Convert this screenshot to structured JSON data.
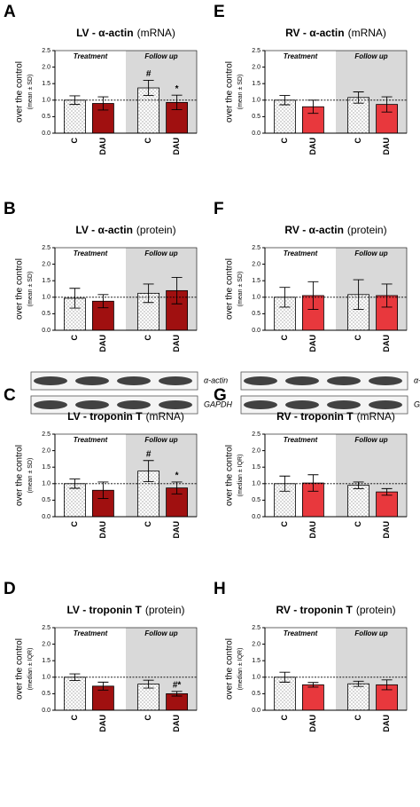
{
  "chart_data": [
    {
      "type": "bar",
      "panel": "A",
      "title": "LV - α-actin",
      "title_note": "(mRNA)",
      "ylabel": "over the control",
      "ylabel_note": "(mean ± SD)",
      "sections": [
        "Treatment",
        "Follow up"
      ],
      "categories": [
        "C",
        "DAU",
        "C",
        "DAU"
      ],
      "values": [
        1.0,
        0.9,
        1.37,
        0.93
      ],
      "errors": [
        0.13,
        0.2,
        0.23,
        0.22
      ],
      "annotations": [
        null,
        null,
        "#",
        "*"
      ],
      "colors": [
        "#ffffff",
        "#a01010",
        "#ffffff",
        "#a01010"
      ],
      "reference_line": 1,
      "ylim": [
        0,
        2.5
      ],
      "yticks": [
        {
          "value": 0,
          "label": "0.0"
        },
        {
          "value": 0.5,
          "label": "0.5"
        },
        {
          "value": 1,
          "label": "1.0"
        },
        {
          "value": 1.5,
          "label": "1.5"
        },
        {
          "value": 2,
          "label": "2.0"
        },
        {
          "value": 2.5,
          "label": "2.5"
        }
      ]
    },
    {
      "type": "bar",
      "panel": "B",
      "title": "LV - α-actin",
      "title_note": "(protein)",
      "ylabel": "over the control",
      "ylabel_note": "(mean ± SD)",
      "sections": [
        "Treatment",
        "Follow up"
      ],
      "categories": [
        "C",
        "DAU",
        "C",
        "DAU"
      ],
      "values": [
        0.97,
        0.88,
        1.12,
        1.2
      ],
      "errors": [
        0.3,
        0.2,
        0.28,
        0.4
      ],
      "annotations": [
        null,
        null,
        null,
        null
      ],
      "colors": [
        "#ffffff",
        "#a01010",
        "#ffffff",
        "#a01010"
      ],
      "reference_line": 1,
      "ylim": [
        0,
        2.5
      ],
      "yticks": [
        {
          "value": 0,
          "label": "0.0"
        },
        {
          "value": 0.5,
          "label": "0.5"
        },
        {
          "value": 1,
          "label": "1.0"
        },
        {
          "value": 1.5,
          "label": "1.5"
        },
        {
          "value": 2,
          "label": "2.0"
        },
        {
          "value": 2.5,
          "label": "2.5"
        }
      ],
      "blot": [
        "α-actin",
        "GAPDH"
      ]
    },
    {
      "type": "bar",
      "panel": "C",
      "title": "LV - troponin T",
      "title_note": "(mRNA)",
      "ylabel": "over the control",
      "ylabel_note": "(mean ± SD)",
      "sections": [
        "Treatment",
        "Follow up"
      ],
      "categories": [
        "C",
        "DAU",
        "C",
        "DAU"
      ],
      "values": [
        1.0,
        0.8,
        1.38,
        0.87
      ],
      "errors": [
        0.14,
        0.25,
        0.32,
        0.18
      ],
      "annotations": [
        null,
        null,
        "#",
        "*"
      ],
      "colors": [
        "#ffffff",
        "#a01010",
        "#ffffff",
        "#a01010"
      ],
      "reference_line": 1,
      "ylim": [
        0,
        2.5
      ],
      "yticks": [
        {
          "value": 0,
          "label": "0.0"
        },
        {
          "value": 0.5,
          "label": "0.5"
        },
        {
          "value": 1,
          "label": "1.0"
        },
        {
          "value": 1.5,
          "label": "1.5"
        },
        {
          "value": 2,
          "label": "2.0"
        },
        {
          "value": 2.5,
          "label": "2.5"
        }
      ]
    },
    {
      "type": "bar",
      "panel": "D",
      "title": "LV - troponin T",
      "title_note": "(protein)",
      "ylabel": "over the control",
      "ylabel_note": "(median ± IQR)",
      "sections": [
        "Treatment",
        "Follow up"
      ],
      "categories": [
        "C",
        "DAU",
        "C",
        "DAU"
      ],
      "values": [
        1.0,
        0.73,
        0.79,
        0.5
      ],
      "errors": [
        0.1,
        0.12,
        0.12,
        0.07
      ],
      "annotations": [
        null,
        null,
        null,
        "#*"
      ],
      "colors": [
        "#ffffff",
        "#a01010",
        "#ffffff",
        "#a01010"
      ],
      "reference_line": 1,
      "ylim": [
        0,
        2.5
      ],
      "yticks": [
        {
          "value": 0,
          "label": "0.0"
        },
        {
          "value": 0.5,
          "label": "0.5"
        },
        {
          "value": 1,
          "label": "1.0"
        },
        {
          "value": 1.5,
          "label": "1.5"
        },
        {
          "value": 2,
          "label": "2.0"
        },
        {
          "value": 2.5,
          "label": "2.5"
        }
      ]
    },
    {
      "type": "bar",
      "panel": "E",
      "title": "RV - α-actin",
      "title_note": "(mRNA)",
      "ylabel": "over the control",
      "ylabel_note": "(mean ± SD)",
      "sections": [
        "Treatment",
        "Follow up"
      ],
      "categories": [
        "C",
        "DAU",
        "C",
        "DAU"
      ],
      "values": [
        1.0,
        0.8,
        1.08,
        0.87
      ],
      "errors": [
        0.14,
        0.2,
        0.17,
        0.23
      ],
      "annotations": [
        null,
        null,
        null,
        null
      ],
      "colors": [
        "#ffffff",
        "#e8383d",
        "#ffffff",
        "#e8383d"
      ],
      "reference_line": 1,
      "ylim": [
        0,
        2.5
      ],
      "yticks": [
        {
          "value": 0,
          "label": "0.0"
        },
        {
          "value": 0.5,
          "label": "0.5"
        },
        {
          "value": 1,
          "label": "1.0"
        },
        {
          "value": 1.5,
          "label": "1.5"
        },
        {
          "value": 2,
          "label": "2.0"
        },
        {
          "value": 2.5,
          "label": "2.5"
        }
      ]
    },
    {
      "type": "bar",
      "panel": "F",
      "title": "RV - α-actin",
      "title_note": "(protein)",
      "ylabel": "over the control",
      "ylabel_note": "(mean ± SD)",
      "sections": [
        "Treatment",
        "Follow up"
      ],
      "categories": [
        "C",
        "DAU",
        "C",
        "DAU"
      ],
      "values": [
        1.0,
        1.05,
        1.08,
        1.05
      ],
      "errors": [
        0.3,
        0.42,
        0.45,
        0.35
      ],
      "annotations": [
        null,
        null,
        null,
        null
      ],
      "colors": [
        "#ffffff",
        "#e8383d",
        "#ffffff",
        "#e8383d"
      ],
      "reference_line": 1,
      "ylim": [
        0,
        2.5
      ],
      "yticks": [
        {
          "value": 0,
          "label": "0.0"
        },
        {
          "value": 0.5,
          "label": "0.5"
        },
        {
          "value": 1,
          "label": "1.0"
        },
        {
          "value": 1.5,
          "label": "1.5"
        },
        {
          "value": 2,
          "label": "2.0"
        },
        {
          "value": 2.5,
          "label": "2.5"
        }
      ],
      "blot": [
        "α-actin",
        "GAPDH"
      ]
    },
    {
      "type": "bar",
      "panel": "G",
      "title": "RV - troponin T",
      "title_note": "(mRNA)",
      "ylabel": "over the control",
      "ylabel_note": "(median ± IQR)",
      "sections": [
        "Treatment",
        "Follow up"
      ],
      "categories": [
        "C",
        "DAU",
        "C",
        "DAU"
      ],
      "values": [
        1.0,
        1.02,
        0.95,
        0.75
      ],
      "errors": [
        0.23,
        0.25,
        0.1,
        0.1
      ],
      "annotations": [
        null,
        null,
        null,
        null
      ],
      "colors": [
        "#ffffff",
        "#e8383d",
        "#ffffff",
        "#e8383d"
      ],
      "reference_line": 1,
      "ylim": [
        0,
        2.5
      ],
      "yticks": [
        {
          "value": 0,
          "label": "0.0"
        },
        {
          "value": 0.5,
          "label": "0.5"
        },
        {
          "value": 1,
          "label": "1.0"
        },
        {
          "value": 1.5,
          "label": "1.5"
        },
        {
          "value": 2,
          "label": "2.0"
        },
        {
          "value": 2.5,
          "label": "2.5"
        }
      ]
    },
    {
      "type": "bar",
      "panel": "H",
      "title": "RV - troponin T",
      "title_note": "(protein)",
      "ylabel": "over the control",
      "ylabel_note": "(median ± IQR)",
      "sections": [
        "Treatment",
        "Follow up"
      ],
      "categories": [
        "C",
        "DAU",
        "C",
        "DAU"
      ],
      "values": [
        1.0,
        0.77,
        0.8,
        0.77
      ],
      "errors": [
        0.15,
        0.07,
        0.08,
        0.15
      ],
      "annotations": [
        null,
        null,
        null,
        null
      ],
      "colors": [
        "#ffffff",
        "#e8383d",
        "#ffffff",
        "#e8383d"
      ],
      "reference_line": 1,
      "ylim": [
        0,
        2.5
      ],
      "yticks": [
        {
          "value": 0,
          "label": "0.0"
        },
        {
          "value": 0.5,
          "label": "0.5"
        },
        {
          "value": 1,
          "label": "1.0"
        },
        {
          "value": 1.5,
          "label": "1.5"
        },
        {
          "value": 2,
          "label": "2.0"
        },
        {
          "value": 2.5,
          "label": "2.5"
        }
      ]
    }
  ]
}
